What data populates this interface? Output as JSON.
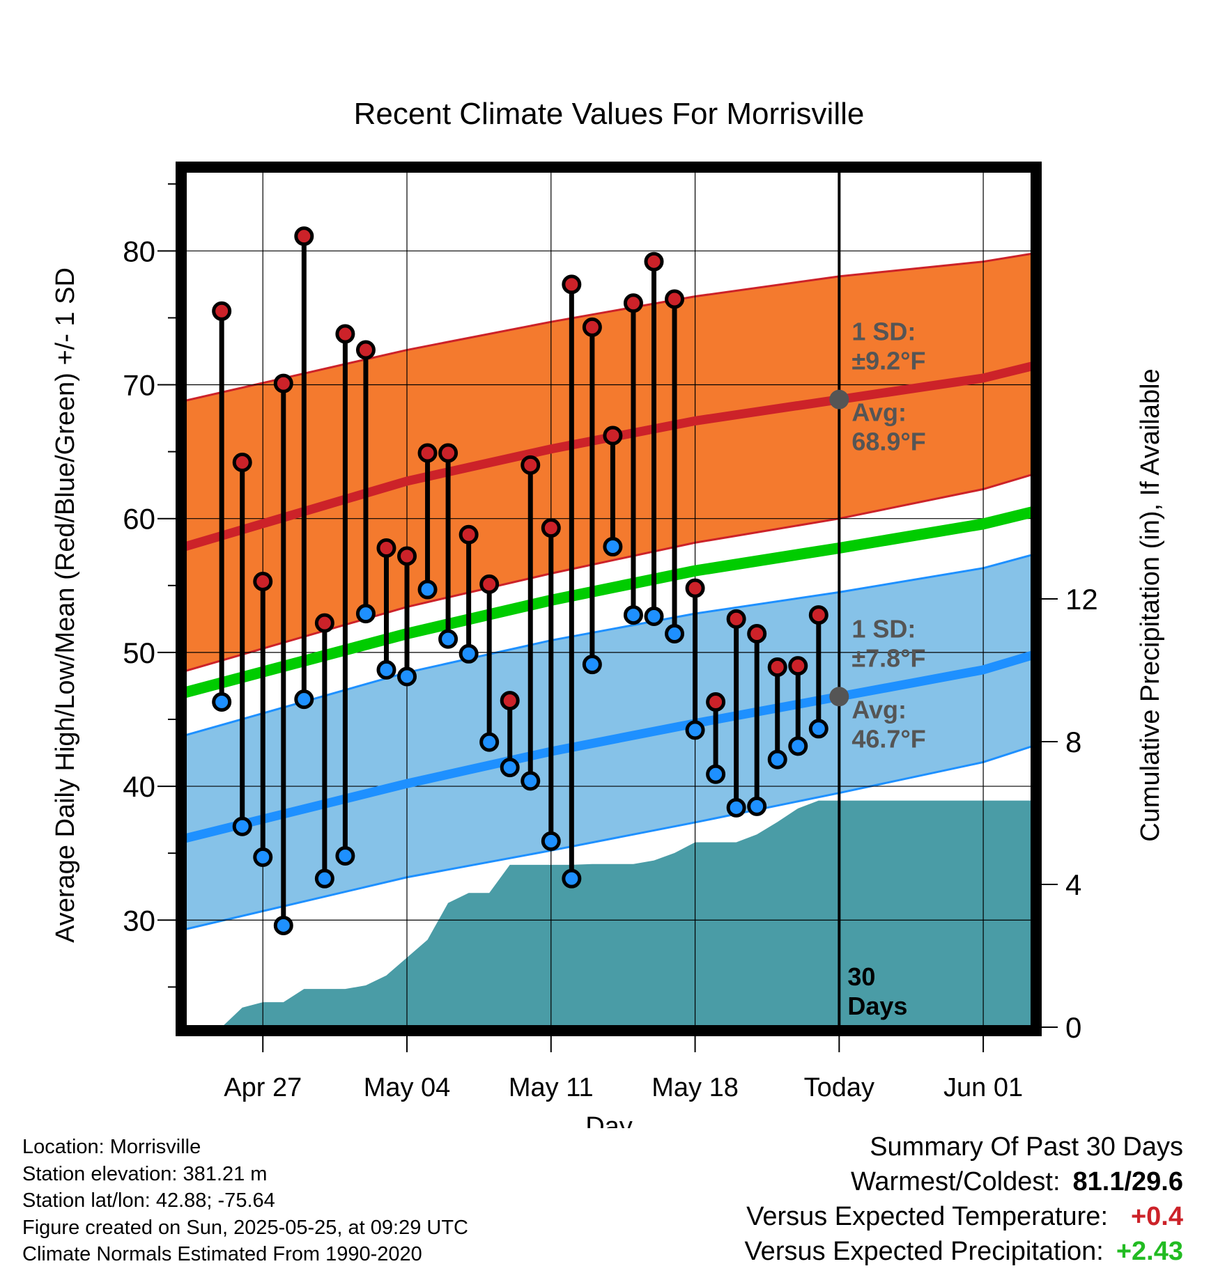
{
  "chart_data": {
    "type": "line",
    "title": "Recent Climate Values For Morrisville",
    "xlabel": "Day",
    "ylabel": "Average Daily High/Low/Mean (Red/Blue/Green) +/- 1 SD",
    "y2label": "Cumulative Precipitation (in), If Available",
    "ylim": [
      22,
      86
    ],
    "y2lim": [
      0,
      24
    ],
    "yticks": [
      30,
      40,
      50,
      60,
      70,
      80
    ],
    "y2ticks": [
      0,
      4,
      8,
      12
    ],
    "xlim": [
      -3.8,
      37.4
    ],
    "xticks": [
      {
        "day": 0,
        "label": "Apr 27"
      },
      {
        "day": 7,
        "label": "May 04"
      },
      {
        "day": 14,
        "label": "May 11"
      },
      {
        "day": 21,
        "label": "May 18"
      },
      {
        "day": 28,
        "label": "Today"
      },
      {
        "day": 35,
        "label": "Jun 01"
      }
    ],
    "today_day": 28,
    "today_label_line1": "30",
    "today_label_line2": "Days",
    "normals": {
      "high_mean": [
        [
          -3.8,
          57.9
        ],
        [
          7,
          62.8
        ],
        [
          14,
          65.2
        ],
        [
          21,
          67.3
        ],
        [
          28,
          68.9
        ],
        [
          35,
          70.5
        ],
        [
          37.4,
          71.4
        ]
      ],
      "high_upper": [
        [
          -3.8,
          68.8
        ],
        [
          7,
          72.6
        ],
        [
          14,
          74.7
        ],
        [
          21,
          76.6
        ],
        [
          28,
          78.1
        ],
        [
          35,
          79.2
        ],
        [
          37.4,
          79.8
        ]
      ],
      "high_lower": [
        [
          -3.8,
          48.6
        ],
        [
          7,
          53.4
        ],
        [
          14,
          55.9
        ],
        [
          21,
          58.2
        ],
        [
          28,
          60.0
        ],
        [
          35,
          62.2
        ],
        [
          37.4,
          63.3
        ]
      ],
      "low_mean": [
        [
          -3.8,
          36.1
        ],
        [
          7,
          40.2
        ],
        [
          14,
          42.6
        ],
        [
          21,
          44.7
        ],
        [
          28,
          46.7
        ],
        [
          35,
          48.7
        ],
        [
          37.4,
          49.8
        ]
      ],
      "low_upper": [
        [
          -3.8,
          43.8
        ],
        [
          7,
          48.5
        ],
        [
          14,
          50.9
        ],
        [
          21,
          52.9
        ],
        [
          28,
          54.5
        ],
        [
          35,
          56.3
        ],
        [
          37.4,
          57.3
        ]
      ],
      "low_lower": [
        [
          -3.8,
          29.3
        ],
        [
          7,
          33.2
        ],
        [
          14,
          35.2
        ],
        [
          21,
          37.3
        ],
        [
          28,
          39.5
        ],
        [
          35,
          41.8
        ],
        [
          37.4,
          43.0
        ]
      ],
      "mean": [
        [
          -3.8,
          47.0
        ],
        [
          7,
          51.4
        ],
        [
          14,
          53.9
        ],
        [
          21,
          56.1
        ],
        [
          28,
          57.8
        ],
        [
          35,
          59.6
        ],
        [
          37.4,
          60.5
        ]
      ]
    },
    "high_annotation": {
      "sd_line1": "1 SD:",
      "sd_line2": "±9.2°F",
      "avg_line1": "Avg:",
      "avg_line2": "68.9°F",
      "avg_value": 68.9
    },
    "low_annotation": {
      "sd_line1": "1 SD:",
      "sd_line2": "±7.8°F",
      "avg_line1": "Avg:",
      "avg_line2": "46.7°F",
      "avg_value": 46.7
    },
    "observations": {
      "days": [
        -2,
        -1,
        0,
        1,
        2,
        3,
        4,
        5,
        6,
        7,
        8,
        9,
        10,
        11,
        12,
        13,
        14,
        15,
        16,
        17,
        18,
        19,
        20,
        21,
        22,
        23,
        24,
        25,
        26,
        27
      ],
      "highs": [
        75.5,
        64.2,
        55.3,
        70.1,
        81.1,
        52.2,
        73.8,
        72.6,
        57.8,
        57.2,
        64.9,
        64.9,
        58.8,
        55.1,
        46.4,
        64.0,
        59.3,
        77.5,
        74.3,
        66.2,
        76.1,
        79.2,
        76.4,
        54.8,
        46.3,
        52.5,
        51.4,
        48.9,
        49.0,
        52.8
      ],
      "lows": [
        46.3,
        37.0,
        34.7,
        29.6,
        46.5,
        33.1,
        34.8,
        52.9,
        48.7,
        48.2,
        54.7,
        51.0,
        49.9,
        43.3,
        41.4,
        40.4,
        35.9,
        33.1,
        49.1,
        57.9,
        52.8,
        52.7,
        51.4,
        44.2,
        40.9,
        38.4,
        38.5,
        42.0,
        43.0,
        44.3
      ]
    },
    "precipitation": {
      "days": [
        -2,
        -1,
        0,
        1,
        2,
        3,
        4,
        5,
        6,
        7,
        8,
        9,
        10,
        11,
        12,
        13,
        14,
        15,
        16,
        17,
        18,
        19,
        20,
        21,
        22,
        23,
        24,
        25,
        26,
        27,
        28,
        37.4
      ],
      "cumulative": [
        0.0,
        0.55,
        0.7,
        0.7,
        1.07,
        1.07,
        1.07,
        1.17,
        1.45,
        1.95,
        2.45,
        3.48,
        3.76,
        3.76,
        4.55,
        4.55,
        4.55,
        4.55,
        4.57,
        4.57,
        4.57,
        4.67,
        4.88,
        5.18,
        5.18,
        5.18,
        5.4,
        5.75,
        6.13,
        6.35,
        6.35,
        6.35
      ]
    },
    "colors": {
      "high_band": "#f47a2e",
      "high_line": "#cc2229",
      "low_band": "#86c2e8",
      "low_line": "#1e90ff",
      "mean_line": "#00cc00",
      "precip": "#4a9ca6",
      "marker_high": "#cc2229",
      "marker_low": "#1e90ff",
      "annotation": "#555555"
    }
  },
  "footer": {
    "location": "Location: Morrisville",
    "elevation": "Station elevation: 381.21 m",
    "latlon": "Station lat/lon: 42.88; -75.64",
    "created": "Figure created on Sun, 2025-05-25, at 09:29 UTC",
    "normals": "Climate Normals Estimated From 1990-2020"
  },
  "summary": {
    "title": "Summary Of Past 30 Days",
    "warmest_label": "Warmest/Coldest:",
    "warmest_value": "81.1/29.6",
    "temp_label": "Versus Expected Temperature:",
    "temp_value": "+0.4",
    "temp_color": "#cc2229",
    "precip_label": "Versus Expected Precipitation:",
    "precip_value": "+2.43",
    "precip_color": "#22bb22"
  }
}
